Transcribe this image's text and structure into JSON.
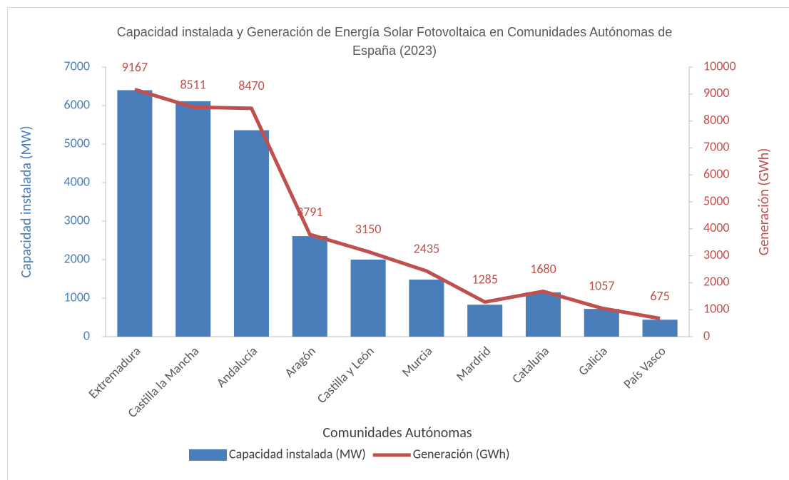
{
  "chart_data": {
    "type": "combo",
    "title": "Capacidad instalada y Generación de Energía Solar Fotovoltaica en Comunidades Autónomas de España (2023)",
    "xlabel": "Comunidades Autónomas",
    "ylabel": "Capacidad instalada (MW)",
    "y2label": "Generación (GWh)",
    "categories": [
      "Extremadura",
      "Castilla la Mancha",
      "Andalucía",
      "Aragón",
      "Castilla y León",
      "Murcia",
      "Mardrid",
      "Cataluña",
      "Galicia",
      "País Vasco"
    ],
    "series": [
      {
        "name": "Capacidad instalada (MW)",
        "type": "bar",
        "color": "#4a7ebb",
        "values": [
          6400,
          6110,
          5360,
          2610,
          2000,
          1480,
          830,
          1150,
          720,
          440
        ]
      },
      {
        "name": "Generación (GWh)",
        "type": "line",
        "axis": "y2",
        "color": "#c0504d",
        "values": [
          9167,
          8511,
          8470,
          3791,
          3150,
          2435,
          1285,
          1680,
          1057,
          675
        ]
      }
    ],
    "ylim": [
      0,
      7000
    ],
    "yticks": [
      0,
      1000,
      2000,
      3000,
      4000,
      5000,
      6000,
      7000
    ],
    "y2lim": [
      0,
      10000
    ],
    "y2ticks": [
      0,
      1000,
      2000,
      3000,
      4000,
      5000,
      6000,
      7000,
      8000,
      9000,
      10000
    ],
    "legend": "bottom"
  }
}
